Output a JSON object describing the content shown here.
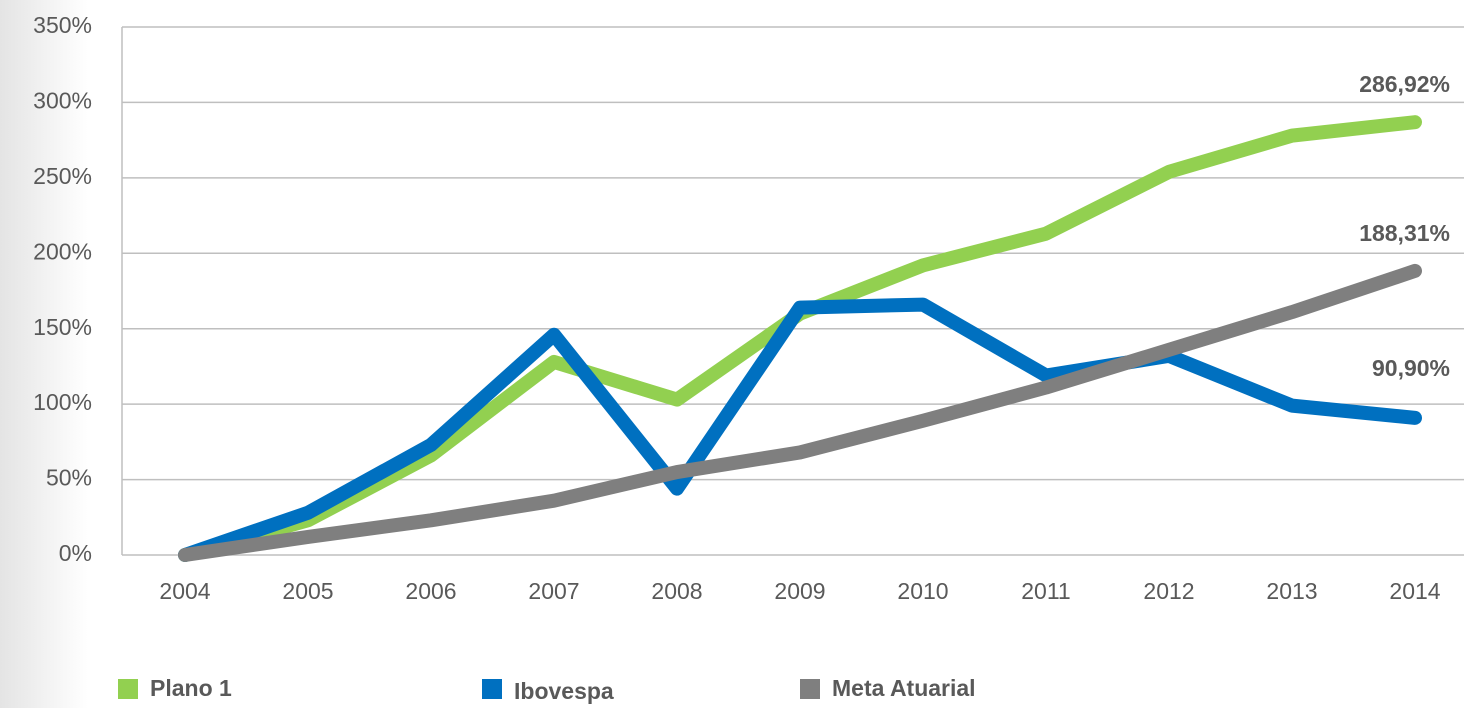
{
  "chart_data": {
    "type": "line",
    "categories": [
      "2004",
      "2005",
      "2006",
      "2007",
      "2008",
      "2009",
      "2010",
      "2011",
      "2012",
      "2013",
      "2014"
    ],
    "series": [
      {
        "name": "Plano 1",
        "color": "#92d050",
        "values": [
          0,
          23,
          66,
          128,
          103,
          160,
          192,
          213,
          254,
          278,
          286.92
        ],
        "value_labels": [
          null,
          null,
          null,
          null,
          null,
          null,
          null,
          null,
          null,
          null,
          "286,92%"
        ]
      },
      {
        "name": "Ibovespa",
        "color": "#0070c0",
        "values": [
          0,
          28,
          73,
          146,
          44,
          164,
          166,
          119,
          132,
          99,
          90.9
        ],
        "value_labels": [
          null,
          null,
          null,
          null,
          null,
          null,
          null,
          null,
          null,
          null,
          "90,90%"
        ]
      },
      {
        "name": "Meta Atuarial",
        "color": "#7f7f7f",
        "values": [
          0,
          12,
          23,
          36,
          55,
          68,
          89,
          111,
          136,
          161,
          188.31
        ],
        "value_labels": [
          null,
          null,
          null,
          null,
          null,
          null,
          null,
          null,
          null,
          null,
          "188,31%"
        ]
      }
    ],
    "ylim": [
      0,
      350
    ],
    "yticks": [
      {
        "value": 0,
        "label": "0%"
      },
      {
        "value": 50,
        "label": "50%"
      },
      {
        "value": 100,
        "label": "100%"
      },
      {
        "value": 150,
        "label": "150%"
      },
      {
        "value": 200,
        "label": "200%"
      },
      {
        "value": 250,
        "label": "250%"
      },
      {
        "value": 300,
        "label": "300%"
      },
      {
        "value": 350,
        "label": "350%"
      }
    ],
    "grid": true,
    "legend": "bottom"
  }
}
